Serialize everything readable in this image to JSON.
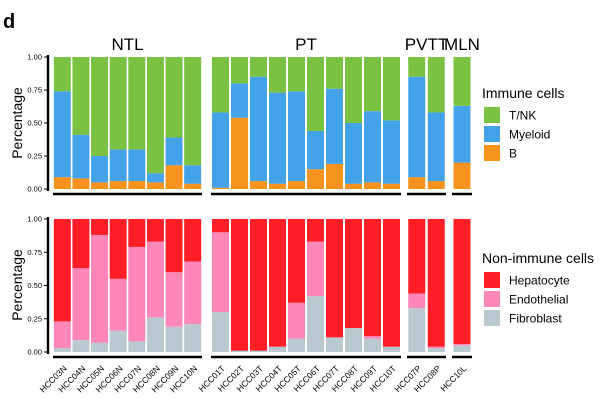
{
  "figure_label": "d",
  "colors": {
    "T/NK": "#7CC242",
    "Myeloid": "#44A3E8",
    "B": "#F7931E",
    "Hepatocyte": "#FF1E26",
    "Endothelial": "#FF86B8",
    "Fibroblast": "#BAC8D0"
  },
  "chart_data": [
    {
      "type": "bar",
      "stacked": true,
      "title": "",
      "xlabel": "",
      "ylabel": "Percentage",
      "ylim": [
        0,
        1
      ],
      "yticks": [
        "0.00",
        "0.25",
        "0.50",
        "0.75",
        "1.00"
      ],
      "legend_title": "Immune cells",
      "legend_position": "right",
      "grid": false,
      "groups": [
        {
          "label": "NTL",
          "categories": [
            "HCC03N",
            "HCC04N",
            "HCC05N",
            "HCC06N",
            "HCC07N",
            "HCC08N",
            "HCC09N",
            "HCC10N"
          ]
        },
        {
          "label": "PT",
          "categories": [
            "HCC01T",
            "HCC02T",
            "HCC03T",
            "HCC04T",
            "HCC05T",
            "HCC06T",
            "HCC07T",
            "HCC08T",
            "HCC09T",
            "HCC10T"
          ]
        },
        {
          "label": "PVTT",
          "categories": [
            "HCC07P",
            "HCC08P"
          ]
        },
        {
          "label": "MLN",
          "categories": [
            "HCC10L"
          ]
        }
      ],
      "series": [
        {
          "name": "B",
          "values": [
            0.09,
            0.08,
            0.05,
            0.06,
            0.06,
            0.05,
            0.18,
            0.04,
            0.01,
            0.54,
            0.06,
            0.04,
            0.06,
            0.15,
            0.19,
            0.04,
            0.05,
            0.04,
            0.09,
            0.06,
            0.2
          ]
        },
        {
          "name": "Myeloid",
          "values": [
            0.65,
            0.33,
            0.2,
            0.24,
            0.24,
            0.07,
            0.21,
            0.14,
            0.57,
            0.26,
            0.79,
            0.69,
            0.68,
            0.29,
            0.57,
            0.46,
            0.54,
            0.48,
            0.76,
            0.52,
            0.43
          ]
        },
        {
          "name": "T/NK",
          "values": [
            0.26,
            0.59,
            0.75,
            0.7,
            0.7,
            0.88,
            0.61,
            0.82,
            0.42,
            0.2,
            0.15,
            0.27,
            0.26,
            0.56,
            0.24,
            0.5,
            0.41,
            0.48,
            0.15,
            0.42,
            0.37
          ]
        }
      ]
    },
    {
      "type": "bar",
      "stacked": true,
      "title": "",
      "xlabel": "",
      "ylabel": "Percentage",
      "ylim": [
        0,
        1
      ],
      "yticks": [
        "0.00",
        "0.25",
        "0.50",
        "0.75",
        "1.00"
      ],
      "legend_title": "Non-immune cells",
      "legend_position": "right",
      "grid": false,
      "groups": [
        {
          "label": "",
          "categories": [
            "HCC03N",
            "HCC04N",
            "HCC05N",
            "HCC06N",
            "HCC07N",
            "HCC08N",
            "HCC09N",
            "HCC10N"
          ]
        },
        {
          "label": "",
          "categories": [
            "HCC01T",
            "HCC02T",
            "HCC03T",
            "HCC04T",
            "HCC05T",
            "HCC06T",
            "HCC07T",
            "HCC08T",
            "HCC09T",
            "HCC10T"
          ]
        },
        {
          "label": "",
          "categories": [
            "HCC07P",
            "HCC08P"
          ]
        },
        {
          "label": "",
          "categories": [
            "HCC10L"
          ]
        }
      ],
      "series": [
        {
          "name": "Fibroblast",
          "values": [
            0.03,
            0.09,
            0.07,
            0.16,
            0.08,
            0.26,
            0.19,
            0.21,
            0.3,
            0.01,
            0.01,
            0.04,
            0.1,
            0.42,
            0.11,
            0.18,
            0.1,
            0.04,
            0.33,
            0.03,
            0.05
          ]
        },
        {
          "name": "Endothelial",
          "values": [
            0.2,
            0.54,
            0.81,
            0.39,
            0.71,
            0.57,
            0.41,
            0.47,
            0.6,
            0.0,
            0.0,
            0.0,
            0.27,
            0.41,
            0.0,
            0.0,
            0.02,
            0.0,
            0.11,
            0.01,
            0.01
          ]
        },
        {
          "name": "Hepatocyte",
          "values": [
            0.77,
            0.37,
            0.12,
            0.45,
            0.21,
            0.17,
            0.4,
            0.32,
            0.1,
            0.99,
            0.99,
            0.96,
            0.63,
            0.17,
            0.89,
            0.82,
            0.88,
            0.96,
            0.56,
            0.96,
            0.94
          ]
        }
      ]
    }
  ]
}
